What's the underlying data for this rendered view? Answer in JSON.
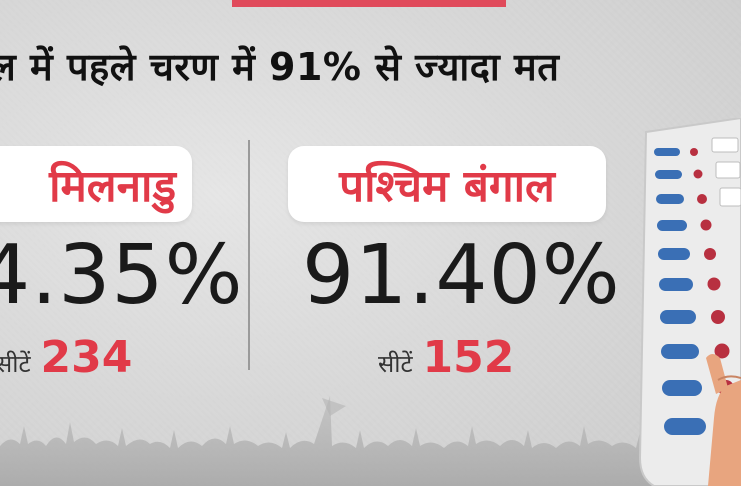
{
  "headline": "ल में पहले चरण में 91% से ज्यादा मत",
  "states": [
    {
      "name": "मिलनाडु",
      "turnout": "4.35%",
      "seats_label": "सीटें",
      "seats": "234"
    },
    {
      "name": "पश्चिम बंगाल",
      "turnout": "91.40%",
      "seats_label": "सीटें",
      "seats": "152"
    }
  ],
  "colors": {
    "accent": "#e13a48",
    "text": "#1a1a1a",
    "background": "#d9d9d9"
  },
  "icons": [
    "crowd-silhouette-icon",
    "evm-machine-icon",
    "voting-hand-icon"
  ]
}
